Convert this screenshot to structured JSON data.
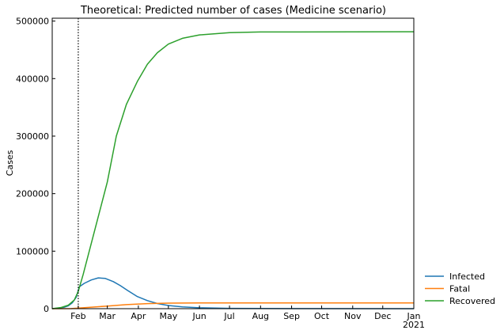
{
  "chart_data": {
    "type": "line",
    "title": "Theoretical: Predicted number of cases (Medicine scenario)",
    "xlabel": "",
    "ylabel": "Cases",
    "x_range": [
      "2020-01-06",
      "2021-01-01"
    ],
    "ylim": [
      0,
      505000
    ],
    "y_ticks": [
      0,
      100000,
      200000,
      300000,
      400000,
      500000
    ],
    "y_tick_labels": [
      "0",
      "100000",
      "200000",
      "300000",
      "400000",
      "500000"
    ],
    "x_ticks": [
      {
        "date": "2020-02-01",
        "label": "Feb"
      },
      {
        "date": "2020-03-01",
        "label": "Mar"
      },
      {
        "date": "2020-04-01",
        "label": "Apr"
      },
      {
        "date": "2020-05-01",
        "label": "May"
      },
      {
        "date": "2020-06-01",
        "label": "Jun"
      },
      {
        "date": "2020-07-01",
        "label": "Jul"
      },
      {
        "date": "2020-08-01",
        "label": "Aug"
      },
      {
        "date": "2020-09-01",
        "label": "Sep"
      },
      {
        "date": "2020-10-01",
        "label": "Oct"
      },
      {
        "date": "2020-11-01",
        "label": "Nov"
      },
      {
        "date": "2020-12-01",
        "label": "Dec"
      },
      {
        "date": "2021-01-01",
        "label": "Jan",
        "sublabel": "2021"
      }
    ],
    "vline": {
      "date": "2020-02-01",
      "style": "dotted"
    },
    "grid": false,
    "legend_position": "outside-bottom-right",
    "series": [
      {
        "name": "Infected",
        "color": "#1f77b4",
        "points": [
          [
            "2020-01-06",
            0
          ],
          [
            "2020-01-12",
            800
          ],
          [
            "2020-01-18",
            2500
          ],
          [
            "2020-01-22",
            5000
          ],
          [
            "2020-01-26",
            10000
          ],
          [
            "2020-01-30",
            20000
          ],
          [
            "2020-02-02",
            38000
          ],
          [
            "2020-02-07",
            44000
          ],
          [
            "2020-02-14",
            50000
          ],
          [
            "2020-02-21",
            53500
          ],
          [
            "2020-02-28",
            52500
          ],
          [
            "2020-03-07",
            47000
          ],
          [
            "2020-03-14",
            40000
          ],
          [
            "2020-03-21",
            32000
          ],
          [
            "2020-03-31",
            21000
          ],
          [
            "2020-04-10",
            14000
          ],
          [
            "2020-04-20",
            9000
          ],
          [
            "2020-05-01",
            5500
          ],
          [
            "2020-05-15",
            3000
          ],
          [
            "2020-06-01",
            1500
          ],
          [
            "2020-07-01",
            600
          ],
          [
            "2020-09-01",
            200
          ],
          [
            "2021-01-01",
            50
          ]
        ]
      },
      {
        "name": "Fatal",
        "color": "#ff7f0e",
        "points": [
          [
            "2020-01-06",
            0
          ],
          [
            "2020-01-25",
            200
          ],
          [
            "2020-02-10",
            2000
          ],
          [
            "2020-03-01",
            4500
          ],
          [
            "2020-03-20",
            7000
          ],
          [
            "2020-04-10",
            8800
          ],
          [
            "2020-05-01",
            9600
          ],
          [
            "2020-06-01",
            9900
          ],
          [
            "2020-07-01",
            10000
          ],
          [
            "2021-01-01",
            10100
          ]
        ]
      },
      {
        "name": "Recovered",
        "color": "#2ca02c",
        "points": [
          [
            "2020-01-06",
            0
          ],
          [
            "2020-01-15",
            2000
          ],
          [
            "2020-01-22",
            6000
          ],
          [
            "2020-01-28",
            15000
          ],
          [
            "2020-02-01",
            30000
          ],
          [
            "2020-02-06",
            60000
          ],
          [
            "2020-02-15",
            120000
          ],
          [
            "2020-03-01",
            220000
          ],
          [
            "2020-03-10",
            300000
          ],
          [
            "2020-03-20",
            355000
          ],
          [
            "2020-03-31",
            395000
          ],
          [
            "2020-04-10",
            425000
          ],
          [
            "2020-04-20",
            445000
          ],
          [
            "2020-05-01",
            460000
          ],
          [
            "2020-05-15",
            470000
          ],
          [
            "2020-06-01",
            476000
          ],
          [
            "2020-07-01",
            480000
          ],
          [
            "2020-08-01",
            481000
          ],
          [
            "2021-01-01",
            481500
          ]
        ]
      }
    ]
  }
}
